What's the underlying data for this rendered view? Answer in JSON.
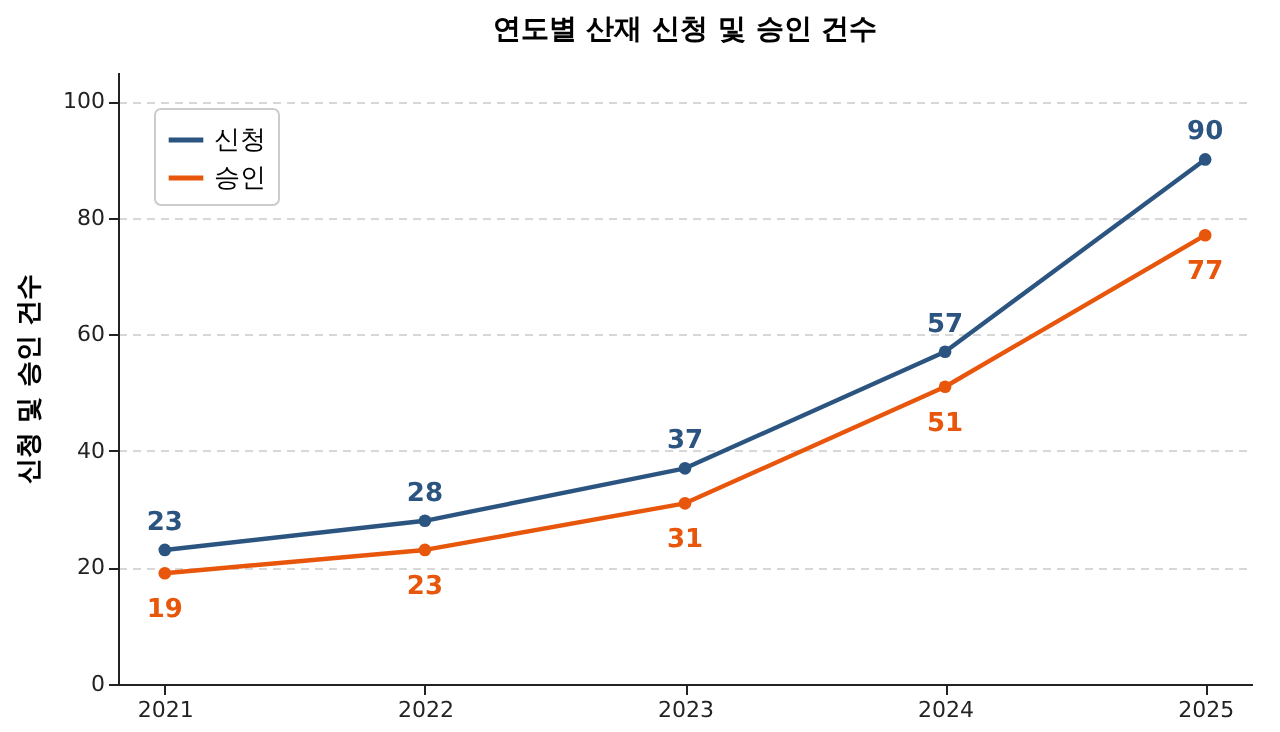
{
  "chart_data": {
    "type": "line",
    "title": "연도별 산재 신청 및 승인 건수",
    "ylabel": "신청 및 승인 건수",
    "categories": [
      "2021",
      "2022",
      "2023",
      "2024",
      "2025"
    ],
    "series": [
      {
        "name": "신청",
        "color": "#2b5580",
        "values": [
          23,
          28,
          37,
          57,
          90
        ]
      },
      {
        "name": "승인",
        "color": "#e8560c",
        "values": [
          19,
          23,
          31,
          51,
          77
        ]
      }
    ],
    "ylim": [
      0,
      105
    ],
    "yticks": [
      0,
      20,
      40,
      60,
      80,
      100
    ],
    "grid": "y",
    "legend": "top left",
    "marker": "circle",
    "line_style": "solid",
    "data_labels": true
  }
}
